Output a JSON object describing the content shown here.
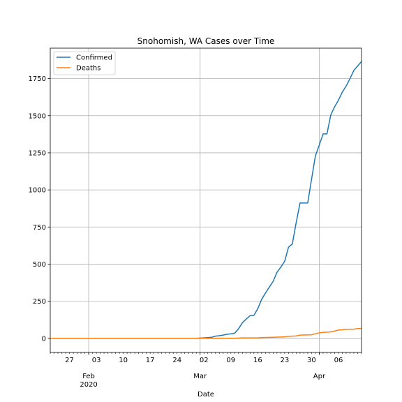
{
  "chart_data": {
    "type": "line",
    "title": "Snohomish, WA Cases over Time",
    "xlabel": "Date",
    "ylabel": "",
    "grid": true,
    "legend_position": "top-left",
    "x_start": "2020-01-22",
    "x_end": "2020-04-12",
    "xlim": [
      "2020-01-22",
      "2020-04-12"
    ],
    "ylim": [
      -95,
      1955
    ],
    "yticks": [
      0,
      250,
      500,
      750,
      1000,
      1250,
      1500,
      1750
    ],
    "xticks_minor": [
      {
        "date": "2020-01-27",
        "label": "27"
      },
      {
        "date": "2020-02-03",
        "label": "03"
      },
      {
        "date": "2020-02-10",
        "label": "10"
      },
      {
        "date": "2020-02-17",
        "label": "17"
      },
      {
        "date": "2020-02-24",
        "label": "24"
      },
      {
        "date": "2020-03-02",
        "label": "02"
      },
      {
        "date": "2020-03-09",
        "label": "09"
      },
      {
        "date": "2020-03-16",
        "label": "16"
      },
      {
        "date": "2020-03-23",
        "label": "23"
      },
      {
        "date": "2020-03-30",
        "label": "30"
      },
      {
        "date": "2020-04-06",
        "label": "06"
      }
    ],
    "xticks_major": [
      {
        "date": "2020-02-01",
        "label": "Feb",
        "sublabel": "2020"
      },
      {
        "date": "2020-03-01",
        "label": "Mar",
        "sublabel": ""
      },
      {
        "date": "2020-04-01",
        "label": "Apr",
        "sublabel": ""
      }
    ],
    "series": [
      {
        "name": "Confirmed",
        "color": "#1f77b4",
        "points": [
          [
            "2020-01-22",
            0
          ],
          [
            "2020-02-29",
            0
          ],
          [
            "2020-03-01",
            2
          ],
          [
            "2020-03-02",
            3
          ],
          [
            "2020-03-03",
            5
          ],
          [
            "2020-03-04",
            7
          ],
          [
            "2020-03-05",
            15
          ],
          [
            "2020-03-06",
            18
          ],
          [
            "2020-03-07",
            22
          ],
          [
            "2020-03-08",
            28
          ],
          [
            "2020-03-09",
            30
          ],
          [
            "2020-03-10",
            35
          ],
          [
            "2020-03-11",
            65
          ],
          [
            "2020-03-12",
            105
          ],
          [
            "2020-03-13",
            130
          ],
          [
            "2020-03-14",
            153
          ],
          [
            "2020-03-15",
            155
          ],
          [
            "2020-03-16",
            200
          ],
          [
            "2020-03-17",
            262
          ],
          [
            "2020-03-18",
            305
          ],
          [
            "2020-03-19",
            345
          ],
          [
            "2020-03-20",
            384
          ],
          [
            "2020-03-21",
            445
          ],
          [
            "2020-03-22",
            480
          ],
          [
            "2020-03-23",
            519
          ],
          [
            "2020-03-24",
            614
          ],
          [
            "2020-03-25",
            636
          ],
          [
            "2020-03-26",
            780
          ],
          [
            "2020-03-27",
            912
          ],
          [
            "2020-03-28",
            912
          ],
          [
            "2020-03-29",
            912
          ],
          [
            "2020-03-30",
            1072
          ],
          [
            "2020-03-31",
            1229
          ],
          [
            "2020-04-01",
            1302
          ],
          [
            "2020-04-02",
            1377
          ],
          [
            "2020-04-03",
            1377
          ],
          [
            "2020-04-04",
            1505
          ],
          [
            "2020-04-05",
            1560
          ],
          [
            "2020-04-06",
            1605
          ],
          [
            "2020-04-07",
            1659
          ],
          [
            "2020-04-08",
            1700
          ],
          [
            "2020-04-09",
            1750
          ],
          [
            "2020-04-10",
            1805
          ],
          [
            "2020-04-11",
            1835
          ],
          [
            "2020-04-12",
            1865
          ]
        ]
      },
      {
        "name": "Deaths",
        "color": "#ff7f0e",
        "points": [
          [
            "2020-01-22",
            0
          ],
          [
            "2020-03-01",
            0
          ],
          [
            "2020-03-05",
            1
          ],
          [
            "2020-03-10",
            1
          ],
          [
            "2020-03-12",
            3
          ],
          [
            "2020-03-16",
            4
          ],
          [
            "2020-03-18",
            6
          ],
          [
            "2020-03-20",
            7
          ],
          [
            "2020-03-22",
            9
          ],
          [
            "2020-03-23",
            10
          ],
          [
            "2020-03-24",
            14
          ],
          [
            "2020-03-26",
            16
          ],
          [
            "2020-03-27",
            22
          ],
          [
            "2020-03-30",
            24
          ],
          [
            "2020-03-31",
            31
          ],
          [
            "2020-04-01",
            37
          ],
          [
            "2020-04-02",
            40
          ],
          [
            "2020-04-04",
            43
          ],
          [
            "2020-04-05",
            49
          ],
          [
            "2020-04-06",
            56
          ],
          [
            "2020-04-07",
            58
          ],
          [
            "2020-04-08",
            61
          ],
          [
            "2020-04-10",
            62
          ],
          [
            "2020-04-11",
            66
          ],
          [
            "2020-04-12",
            67
          ]
        ]
      }
    ]
  }
}
